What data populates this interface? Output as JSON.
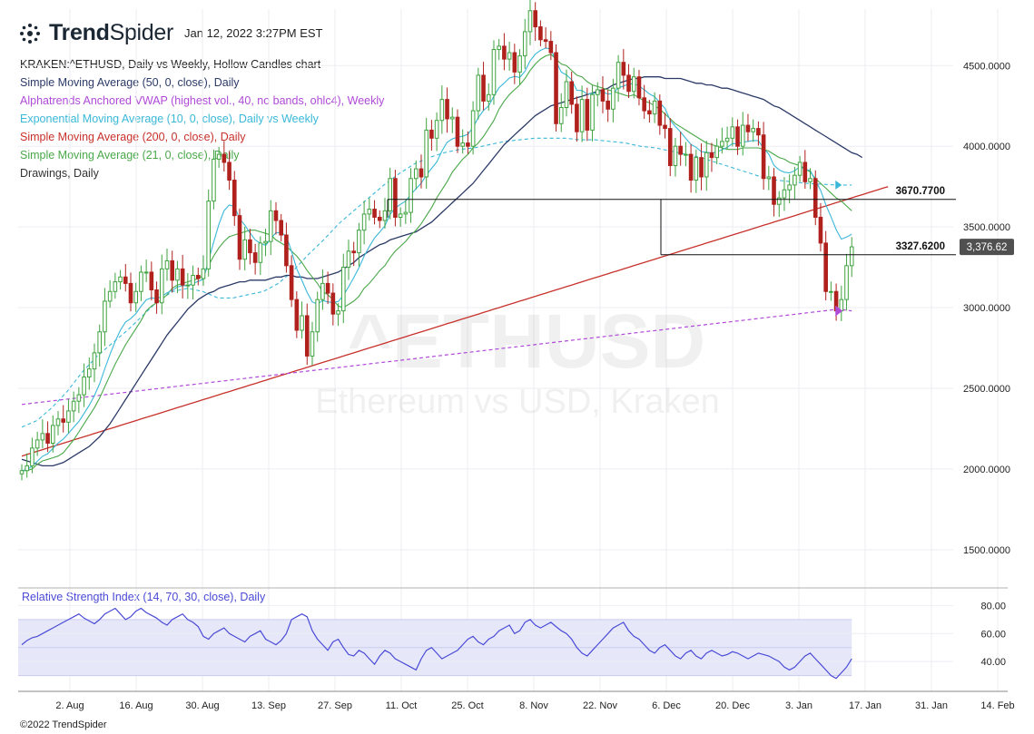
{
  "header": {
    "brand_bold": "Trend",
    "brand_light": "Spider",
    "timestamp": "Jan 12, 2022 3:27PM EST"
  },
  "legend": [
    {
      "text": "KRAKEN:^ETHUSD, Daily vs Weekly, Hollow Candles chart",
      "color": "#222222"
    },
    {
      "text": "Simple Moving Average (50, 0, close), Daily",
      "color": "#2b3a67"
    },
    {
      "text": "Alphatrends Anchored VWAP (highest vol., 40, no bands, ohlc4), Weekly",
      "color": "#b04ad8"
    },
    {
      "text": "Exponential Moving Average (10, 0, close), Daily vs Weekly",
      "color": "#3ab8d8"
    },
    {
      "text": "Simple Moving Average (200, 0, close), Daily",
      "color": "#c8312b"
    },
    {
      "text": "Simple Moving Average (21, 0, close), Daily",
      "color": "#4aa84a"
    },
    {
      "text": "Drawings, Daily",
      "color": "#333333"
    }
  ],
  "watermark": {
    "symbol": "^ETHUSD",
    "name": "Ethereum vs USD, Kraken"
  },
  "copyright": "©2022 TrendSpider",
  "rsi_label": "Relative Strength Index (14, 70, 30, close), Daily",
  "chart_data": {
    "type": "candlestick",
    "price_axis": {
      "ticks": [
        "4500.0000",
        "4000.0000",
        "3500.0000",
        "3000.0000",
        "2500.0000",
        "2000.0000",
        "1500.0000"
      ],
      "values": [
        4500,
        4000,
        3500,
        3000,
        2500,
        2000,
        1500
      ],
      "ylim": [
        1280,
        4850
      ]
    },
    "x_ticks": [
      "2. Aug",
      "16. Aug",
      "30. Aug",
      "13. Sep",
      "27. Sep",
      "11. Oct",
      "25. Oct",
      "8. Nov",
      "22. Nov",
      "6. Dec",
      "20. Dec",
      "3. Jan",
      "17. Jan",
      "31. Jan",
      "14. Feb"
    ],
    "start_date": "2021-07-20",
    "last_price": "3,376.62",
    "horizontal_levels": [
      {
        "label": "3670.7700",
        "value": 3670.77
      },
      {
        "label": "3327.6200",
        "value": 3327.62
      }
    ],
    "close": [
      1990,
      2020,
      2130,
      2180,
      2220,
      2160,
      2270,
      2310,
      2290,
      2360,
      2420,
      2460,
      2570,
      2620,
      2720,
      2850,
      3040,
      3100,
      3160,
      3190,
      3150,
      3030,
      3100,
      3220,
      3220,
      3110,
      3030,
      3240,
      3290,
      3170,
      3240,
      3140,
      3140,
      3200,
      3180,
      3240,
      3660,
      3920,
      3950,
      3900,
      3790,
      3570,
      3300,
      3420,
      3340,
      3280,
      3400,
      3410,
      3600,
      3540,
      3450,
      3260,
      3050,
      2860,
      2950,
      2700,
      2850,
      3050,
      3150,
      3090,
      2960,
      2980,
      3250,
      3350,
      3340,
      3480,
      3580,
      3610,
      3560,
      3540,
      3600,
      3800,
      3560,
      3580,
      3590,
      3800,
      3860,
      3810,
      4100,
      4050,
      4160,
      4290,
      4170,
      4180,
      4000,
      4020,
      4000,
      4220,
      4440,
      4280,
      4320,
      4600,
      4620,
      4540,
      4580,
      4460,
      4560,
      4710,
      4840,
      4740,
      4660,
      4650,
      4580,
      4140,
      4240,
      4400,
      4260,
      4090,
      4290,
      4100,
      4320,
      4350,
      4280,
      4230,
      4360,
      4520,
      4440,
      4340,
      4430,
      4300,
      4220,
      4200,
      4280,
      4130,
      4110,
      3880,
      4000,
      3950,
      3950,
      3790,
      3930,
      3810,
      3960,
      3930,
      4000,
      4030,
      4050,
      4120,
      4000,
      4130,
      4090,
      4110,
      4070,
      3800,
      3810,
      3640,
      3680,
      3730,
      3760,
      3820,
      3900,
      3780,
      3800,
      3560,
      3400,
      3100,
      3100,
      2980,
      3050,
      3260,
      3376.62
    ],
    "ema10": [
      1990,
      1995,
      2019,
      2048,
      2079,
      2095,
      2127,
      2161,
      2185,
      2221,
      2258,
      2295,
      2344,
      2395,
      2455,
      2528,
      2621,
      2709,
      2791,
      2860,
      2911,
      2932,
      2963,
      3009,
      3048,
      3061,
      3055,
      3070,
      3092,
      3106,
      3128,
      3136,
      3136,
      3150,
      3163,
      3176,
      3292,
      3407,
      3516,
      3601,
      3636,
      3626,
      3551,
      3511,
      3463,
      3420,
      3399,
      3386,
      3427,
      3465,
      3464,
      3442,
      3350,
      3241,
      3169,
      3095,
      3036,
      3021,
      3045,
      3035,
      3032,
      3038,
      3077,
      3129,
      3186,
      3247,
      3319,
      3378,
      3432,
      3468,
      3507,
      3579,
      3616,
      3640,
      3660,
      3701,
      3737,
      3771,
      3822,
      3863,
      3902,
      3970,
      4024,
      4046,
      4057,
      4062,
      4074,
      4117,
      4177,
      4221,
      4250,
      4309,
      4363,
      4391,
      4423,
      4433,
      4426,
      4465,
      4530,
      4571,
      4594,
      4609,
      4604,
      4526,
      4459,
      4442,
      4412,
      4347,
      4345,
      4323,
      4327,
      4330,
      4336,
      4323,
      4327,
      4362,
      4373,
      4384,
      4389,
      4373,
      4350,
      4324,
      4307,
      4270,
      4235,
      4161,
      4122,
      4088,
      4049,
      4011,
      3994,
      3966,
      3963,
      3958,
      3964,
      3979,
      3993,
      4017,
      4015,
      4026,
      4030,
      4036,
      4035,
      3986,
      3952,
      3882,
      3854,
      3839,
      3835,
      3848,
      3874,
      3857,
      3849,
      3788,
      3726,
      3637,
      3563,
      3483,
      3424,
      3437,
      3455
    ],
    "sma21": [
      1990,
      1990,
      2000,
      2030,
      2050,
      2060,
      2070,
      2080,
      2100,
      2140,
      2180,
      2230,
      2280,
      2330,
      2380,
      2440,
      2510,
      2580,
      2650,
      2710,
      2770,
      2820,
      2870,
      2920,
      2980,
      3010,
      3030,
      3050,
      3080,
      3120,
      3140,
      3150,
      3160,
      3170,
      3180,
      3200,
      3260,
      3320,
      3370,
      3410,
      3440,
      3450,
      3460,
      3470,
      3480,
      3480,
      3470,
      3460,
      3450,
      3420,
      3400,
      3380,
      3350,
      3320,
      3280,
      3230,
      3190,
      3150,
      3100,
      3080,
      3050,
      3010,
      3000,
      3020,
      3040,
      3070,
      3120,
      3150,
      3190,
      3230,
      3260,
      3310,
      3350,
      3380,
      3410,
      3450,
      3480,
      3520,
      3570,
      3620,
      3680,
      3730,
      3780,
      3840,
      3880,
      3920,
      3950,
      3990,
      4020,
      4060,
      4110,
      4160,
      4230,
      4280,
      4320,
      4350,
      4380,
      4420,
      4470,
      4510,
      4540,
      4560,
      4570,
      4540,
      4510,
      4500,
      4470,
      4440,
      4430,
      4400,
      4380,
      4370,
      4360,
      4350,
      4340,
      4330,
      4320,
      4310,
      4320,
      4300,
      4280,
      4270,
      4250,
      4230,
      4200,
      4170,
      4140,
      4120,
      4100,
      4080,
      4060,
      4040,
      4020,
      4010,
      4000,
      3990,
      3980,
      3980,
      3980,
      3990,
      3990,
      3990,
      3990,
      3980,
      3970,
      3950,
      3930,
      3920,
      3900,
      3890,
      3880,
      3860,
      3840,
      3800,
      3770,
      3740,
      3710,
      3680,
      3660,
      3630,
      3600
    ],
    "sma50": [
      2060,
      2050,
      2040,
      2030,
      2020,
      2020,
      2020,
      2030,
      2040,
      2060,
      2080,
      2100,
      2120,
      2140,
      2170,
      2200,
      2240,
      2280,
      2330,
      2380,
      2430,
      2480,
      2530,
      2580,
      2630,
      2680,
      2730,
      2780,
      2830,
      2870,
      2910,
      2950,
      2990,
      3020,
      3050,
      3070,
      3090,
      3100,
      3120,
      3130,
      3140,
      3150,
      3160,
      3160,
      3170,
      3170,
      3170,
      3170,
      3180,
      3190,
      3190,
      3200,
      3200,
      3190,
      3190,
      3180,
      3180,
      3180,
      3190,
      3200,
      3210,
      3220,
      3240,
      3260,
      3280,
      3310,
      3330,
      3350,
      3370,
      3390,
      3400,
      3420,
      3430,
      3440,
      3450,
      3460,
      3470,
      3490,
      3510,
      3530,
      3560,
      3590,
      3620,
      3650,
      3680,
      3710,
      3740,
      3770,
      3810,
      3850,
      3890,
      3930,
      3970,
      4010,
      4040,
      4070,
      4100,
      4130,
      4160,
      4190,
      4210,
      4230,
      4250,
      4260,
      4270,
      4280,
      4290,
      4300,
      4310,
      4320,
      4330,
      4340,
      4350,
      4360,
      4380,
      4390,
      4400,
      4410,
      4420,
      4420,
      4430,
      4430,
      4430,
      4430,
      4420,
      4420,
      4420,
      4420,
      4410,
      4400,
      4390,
      4390,
      4380,
      4380,
      4370,
      4360,
      4360,
      4350,
      4340,
      4330,
      4320,
      4310,
      4300,
      4290,
      4270,
      4250,
      4240,
      4220,
      4200,
      4180,
      4160,
      4140,
      4120,
      4100,
      4080,
      4060,
      4040,
      4020,
      4000,
      3980,
      3960,
      3950,
      3930
    ],
    "sma200": [
      2080,
      2090,
      2100,
      2110,
      2120,
      2130,
      2140,
      2150,
      2160,
      2170,
      2180,
      2190,
      2200,
      2210,
      2220,
      2230,
      2240,
      2250,
      2260,
      2270,
      2280,
      2290,
      2300,
      2310,
      2320,
      2330,
      2340,
      2350,
      2360,
      2370,
      2380,
      2390,
      2400,
      2410,
      2420,
      2430,
      2440,
      2450,
      2460,
      2470,
      2480,
      2490,
      2500,
      2510,
      2520,
      2530,
      2540,
      2550,
      2560,
      2570,
      2580,
      2590,
      2600,
      2610,
      2620,
      2630,
      2640,
      2650,
      2660,
      2670,
      2680,
      2690,
      2700,
      2710,
      2720,
      2730,
      2740,
      2750,
      2760,
      2770,
      2780,
      2790,
      2800,
      2810,
      2820,
      2830,
      2840,
      2850,
      2860,
      2870,
      2880,
      2890,
      2900,
      2910,
      2920,
      2930,
      2940,
      2950,
      2960,
      2970,
      2980,
      2990,
      3000,
      3010,
      3020,
      3030,
      3040,
      3050,
      3060,
      3070,
      3080,
      3090,
      3100,
      3110,
      3120,
      3130,
      3140,
      3150,
      3160,
      3170,
      3180,
      3190,
      3200,
      3210,
      3220,
      3230,
      3240,
      3250,
      3260,
      3270,
      3280,
      3290,
      3300,
      3310,
      3320,
      3330,
      3340,
      3350,
      3360,
      3370,
      3380,
      3390,
      3400,
      3410,
      3420,
      3430,
      3440,
      3450,
      3460,
      3470,
      3480,
      3490,
      3500,
      3510,
      3520,
      3530,
      3540,
      3550,
      3560,
      3570,
      3580,
      3590,
      3600,
      3610,
      3620,
      3630,
      3640,
      3650,
      3660,
      3670,
      3680,
      3690,
      3700,
      3710,
      3720,
      3730,
      3740,
      3750
    ],
    "vwap_weekly": [
      2400,
      2410,
      2420,
      2430,
      2440,
      2450,
      2460,
      2470,
      2480,
      2490,
      2500,
      2510,
      2520,
      2530,
      2540,
      2550,
      2560,
      2570,
      2580,
      2590,
      2600,
      2610,
      2620,
      2630,
      2640,
      2650,
      2660,
      2670,
      2680,
      2690,
      2700,
      2710,
      2720,
      2730,
      2740,
      2750,
      2760,
      2770,
      2780,
      2790,
      2800,
      2810,
      2820,
      2830,
      2840,
      2850,
      2860,
      2870,
      2880,
      2890,
      2900,
      2910,
      2920,
      2930,
      2940,
      2950,
      2960,
      2970,
      2980,
      2990,
      2980
    ],
    "ema_weekly": [
      2260,
      2300,
      2380,
      2480,
      2600,
      2700,
      2780,
      2860,
      2950,
      3040,
      3100,
      3120,
      3100,
      3060,
      3060,
      3080,
      3100,
      3150,
      3230,
      3330,
      3420,
      3520,
      3600,
      3680,
      3760,
      3830,
      3890,
      3930,
      3960,
      3980,
      3990,
      4010,
      4030,
      4040,
      4050,
      4050,
      4050,
      4040,
      4040,
      4030,
      4020,
      4000,
      3990,
      3970,
      3950,
      3930,
      3900,
      3870,
      3840,
      3810,
      3790,
      3780,
      3770,
      3765,
      3760,
      3760
    ],
    "rsi": {
      "ticks": [
        "80.00",
        "60.00",
        "40.00"
      ],
      "tick_values": [
        80,
        60,
        40
      ],
      "ylim": [
        20,
        90
      ],
      "overbought": 70,
      "oversold": 30,
      "values": [
        52,
        55,
        57,
        58,
        60,
        62,
        64,
        66,
        68,
        70,
        72,
        74,
        71,
        69,
        67,
        70,
        74,
        76,
        78,
        74,
        70,
        72,
        76,
        78,
        75,
        73,
        71,
        68,
        66,
        70,
        72,
        74,
        70,
        68,
        65,
        58,
        56,
        60,
        62,
        64,
        60,
        58,
        56,
        54,
        58,
        60,
        62,
        56,
        54,
        52,
        55,
        60,
        70,
        72,
        74,
        72,
        62,
        56,
        52,
        48,
        54,
        56,
        50,
        45,
        44,
        48,
        46,
        42,
        38,
        44,
        48,
        46,
        42,
        40,
        38,
        36,
        34,
        42,
        48,
        50,
        46,
        42,
        44,
        46,
        48,
        52,
        56,
        58,
        54,
        52,
        56,
        58,
        62,
        64,
        66,
        60,
        62,
        68,
        70,
        66,
        64,
        66,
        68,
        65,
        62,
        60,
        56,
        50,
        46,
        44,
        48,
        52,
        56,
        60,
        64,
        66,
        68,
        62,
        58,
        56,
        52,
        48,
        46,
        50,
        52,
        48,
        44,
        42,
        46,
        48,
        44,
        42,
        46,
        48,
        46,
        44,
        45,
        47,
        46,
        44,
        42,
        44,
        46,
        45,
        44,
        42,
        40,
        36,
        34,
        36,
        40,
        44,
        46,
        42,
        38,
        34,
        30,
        28,
        32,
        36,
        42
      ]
    }
  }
}
